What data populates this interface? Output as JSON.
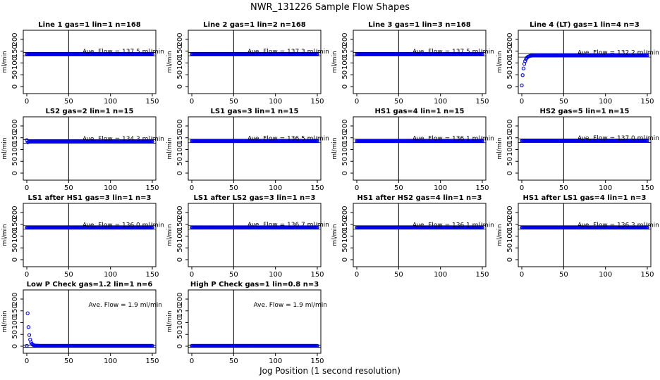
{
  "title": "NWR_131226  Sample Flow Shapes",
  "xlabel": "Jog Position (1 second resolution)",
  "chart_data": [
    {
      "type": "scatter",
      "title": "Line 1 gas=1 lin=1 n=168",
      "ylabel": "ml/min",
      "xlim": [
        0,
        150
      ],
      "ylim": [
        0,
        200
      ],
      "xticks": [
        0,
        50,
        100,
        150
      ],
      "yticks": [
        0,
        50,
        100,
        150,
        200
      ],
      "annotation": "Ave. Flow = 137.5  ml/min",
      "vline": 50,
      "hlines": [
        130,
        145
      ],
      "profile": "flat",
      "level": 137.5
    },
    {
      "type": "scatter",
      "title": "Line 2 gas=1 lin=2 n=168",
      "ylabel": "ml/min",
      "xlim": [
        0,
        150
      ],
      "ylim": [
        0,
        200
      ],
      "xticks": [
        0,
        50,
        100,
        150
      ],
      "yticks": [
        0,
        50,
        100,
        150,
        200
      ],
      "annotation": "Ave. Flow = 137.3  ml/min",
      "vline": 50,
      "hlines": [
        130,
        145
      ],
      "profile": "flat",
      "level": 137.3
    },
    {
      "type": "scatter",
      "title": "Line 3 gas=1 lin=3 n=168",
      "ylabel": "ml/min",
      "xlim": [
        0,
        150
      ],
      "ylim": [
        0,
        200
      ],
      "xticks": [
        0,
        50,
        100,
        150
      ],
      "yticks": [
        0,
        50,
        100,
        150,
        200
      ],
      "annotation": "Ave. Flow = 137.5  ml/min",
      "vline": 50,
      "hlines": [
        130,
        145
      ],
      "profile": "flat",
      "level": 137.5
    },
    {
      "type": "scatter",
      "title": "Line 4 (LT) gas=1 lin=4 n=3",
      "ylabel": "ml/min",
      "xlim": [
        0,
        150
      ],
      "ylim": [
        0,
        200
      ],
      "xticks": [
        0,
        50,
        100,
        150
      ],
      "yticks": [
        0,
        50,
        100,
        150,
        200
      ],
      "annotation": "Ave. Flow = 132.2  ml/min",
      "vline": 50,
      "hlines": [
        125,
        140
      ],
      "profile": "rise",
      "level": 132.2
    },
    {
      "type": "scatter",
      "title": "LS2 gas=2 lin=1 n=15",
      "ylabel": "ml/min",
      "xlim": [
        0,
        150
      ],
      "ylim": [
        0,
        200
      ],
      "xticks": [
        0,
        50,
        100,
        150
      ],
      "yticks": [
        0,
        50,
        100,
        150,
        200
      ],
      "annotation": "Ave. Flow = 134.3  ml/min",
      "vline": 50,
      "hlines": [
        127,
        142
      ],
      "profile": "dip",
      "level": 134.3
    },
    {
      "type": "scatter",
      "title": "LS1 gas=3 lin=1 n=15",
      "ylabel": "ml/min",
      "xlim": [
        0,
        150
      ],
      "ylim": [
        0,
        200
      ],
      "xticks": [
        0,
        50,
        100,
        150
      ],
      "yticks": [
        0,
        50,
        100,
        150,
        200
      ],
      "annotation": "Ave. Flow = 136.5  ml/min",
      "vline": 50,
      "hlines": [
        129,
        144
      ],
      "profile": "flat",
      "level": 136.5
    },
    {
      "type": "scatter",
      "title": "HS1 gas=4 lin=1 n=15",
      "ylabel": "ml/min",
      "xlim": [
        0,
        150
      ],
      "ylim": [
        0,
        200
      ],
      "xticks": [
        0,
        50,
        100,
        150
      ],
      "yticks": [
        0,
        50,
        100,
        150,
        200
      ],
      "annotation": "Ave. Flow = 136.1  ml/min",
      "vline": 50,
      "hlines": [
        129,
        144
      ],
      "profile": "flat",
      "level": 136.1
    },
    {
      "type": "scatter",
      "title": "HS2 gas=5 lin=1 n=15",
      "ylabel": "ml/min",
      "xlim": [
        0,
        150
      ],
      "ylim": [
        0,
        200
      ],
      "xticks": [
        0,
        50,
        100,
        150
      ],
      "yticks": [
        0,
        50,
        100,
        150,
        200
      ],
      "annotation": "Ave. Flow = 137.0  ml/min",
      "vline": 50,
      "hlines": [
        130,
        145
      ],
      "profile": "flat",
      "level": 137.0
    },
    {
      "type": "scatter",
      "title": "LS1 after HS1 gas=3 lin=1 n=3",
      "ylabel": "ml/min",
      "xlim": [
        0,
        150
      ],
      "ylim": [
        0,
        200
      ],
      "xticks": [
        0,
        50,
        100,
        150
      ],
      "yticks": [
        0,
        50,
        100,
        150,
        200
      ],
      "annotation": "Ave. Flow = 136.0  ml/min",
      "vline": 50,
      "hlines": [
        129,
        144
      ],
      "profile": "flat",
      "level": 136.0
    },
    {
      "type": "scatter",
      "title": "LS1 after LS2 gas=3 lin=1 n=3",
      "ylabel": "ml/min",
      "xlim": [
        0,
        150
      ],
      "ylim": [
        0,
        200
      ],
      "xticks": [
        0,
        50,
        100,
        150
      ],
      "yticks": [
        0,
        50,
        100,
        150,
        200
      ],
      "annotation": "Ave. Flow = 136.7  ml/min",
      "vline": 50,
      "hlines": [
        129,
        144
      ],
      "profile": "flat",
      "level": 136.7
    },
    {
      "type": "scatter",
      "title": "HS1 after HS2 gas=4 lin=1 n=3",
      "ylabel": "ml/min",
      "xlim": [
        0,
        150
      ],
      "ylim": [
        0,
        200
      ],
      "xticks": [
        0,
        50,
        100,
        150
      ],
      "yticks": [
        0,
        50,
        100,
        150,
        200
      ],
      "annotation": "Ave. Flow = 136.1  ml/min",
      "vline": 50,
      "hlines": [
        129,
        144
      ],
      "profile": "flat",
      "level": 136.1
    },
    {
      "type": "scatter",
      "title": "HS1 after LS1 gas=4 lin=1 n=3",
      "ylabel": "ml/min",
      "xlim": [
        0,
        150
      ],
      "ylim": [
        0,
        200
      ],
      "xticks": [
        0,
        50,
        100,
        150
      ],
      "yticks": [
        0,
        50,
        100,
        150,
        200
      ],
      "annotation": "Ave. Flow = 136.3  ml/min",
      "vline": 50,
      "hlines": [
        129,
        144
      ],
      "profile": "flat",
      "level": 136.3
    },
    {
      "type": "scatter",
      "title": "Low P Check gas=1.2 lin=1 n=6",
      "ylabel": "ml/min",
      "xlim": [
        0,
        150
      ],
      "ylim": [
        0,
        200
      ],
      "xticks": [
        0,
        50,
        100,
        150
      ],
      "yticks": [
        0,
        50,
        100,
        150,
        200
      ],
      "annotation": "Ave. Flow = 1.9  ml/min",
      "vline": 50,
      "hlines": [
        -5,
        5
      ],
      "profile": "decay",
      "level": 1.9
    },
    {
      "type": "scatter",
      "title": "High P Check gas=1 lin=0.8 n=3",
      "ylabel": "ml/min",
      "xlim": [
        0,
        150
      ],
      "ylim": [
        0,
        200
      ],
      "xticks": [
        0,
        50,
        100,
        150
      ],
      "yticks": [
        0,
        50,
        100,
        150,
        200
      ],
      "annotation": "Ave. Flow = 1.9  ml/min",
      "vline": 50,
      "hlines": [
        -5,
        5
      ],
      "profile": "flat",
      "level": 1.9
    }
  ]
}
